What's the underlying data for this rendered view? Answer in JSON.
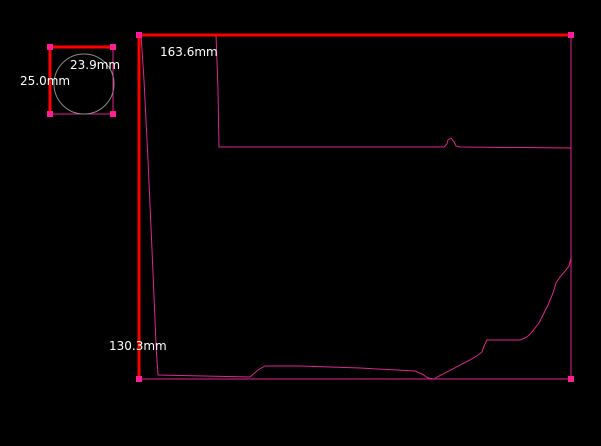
{
  "colors": {
    "background": "#000000",
    "outline": "#e0258f",
    "dimension_line": "#ff0000",
    "handle": "#ff1e96",
    "reference_circle": "#8a8a8a",
    "label_text": "#ffffff"
  },
  "reference_part": {
    "dimensions": {
      "height": "25.0mm",
      "diameter": "23.9mm"
    }
  },
  "main_part": {
    "dimensions": {
      "width": "163.6mm",
      "height": "130.3mm"
    }
  }
}
